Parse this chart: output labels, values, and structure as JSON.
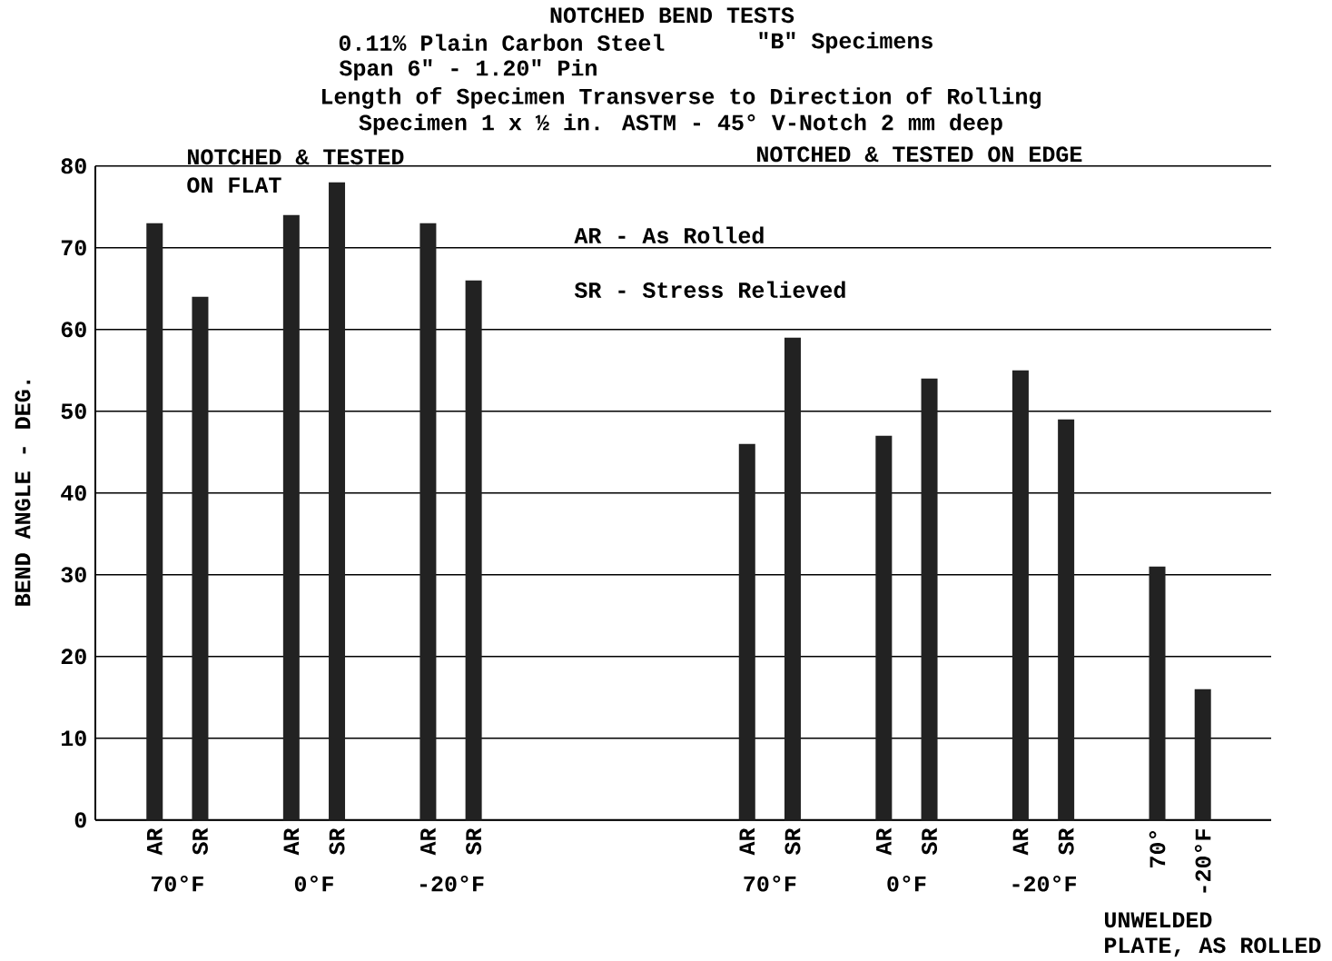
{
  "chart_data": {
    "type": "bar",
    "title": "NOTCHED BEND TESTS",
    "ylabel": "BEND ANGLE - DEG.",
    "categories": [
      "AR",
      "SR",
      null,
      "AR",
      "SR",
      null,
      "AR",
      "SR",
      null,
      null,
      null,
      null,
      null,
      "AR",
      "SR",
      null,
      "AR",
      "SR",
      null,
      "AR",
      "SR",
      null,
      "70°",
      "-20°F"
    ],
    "values": [
      73,
      64,
      null,
      74,
      78,
      null,
      73,
      66,
      null,
      null,
      null,
      null,
      null,
      46,
      59,
      null,
      47,
      54,
      null,
      55,
      49,
      null,
      31,
      16
    ],
    "color": "#222222",
    "ylim": [
      0,
      80
    ],
    "yticks": [
      0,
      10,
      20,
      30,
      40,
      50,
      60,
      70,
      80
    ],
    "grid": "y",
    "annotations": [
      "0.11% Plain Carbon Steel",
      "\"B\" Specimens",
      "Span 6\" - 1.20\" Pin",
      "Length of Specimen Transverse to Direction of Rolling",
      "Specimen 1 x ½ in. ASTM - 45° V-Notch 2 mm deep",
      "NOTCHED & TESTED",
      "ON FLAT",
      "NOTCHED & TESTED ON EDGE",
      "AR - As Rolled",
      "SR - Stress Relieved",
      "70°F",
      "0°F",
      "-20°F",
      "70°F",
      "0°F",
      "-20°F",
      "UNWELDED",
      "PLATE, AS ROLLED"
    ]
  }
}
